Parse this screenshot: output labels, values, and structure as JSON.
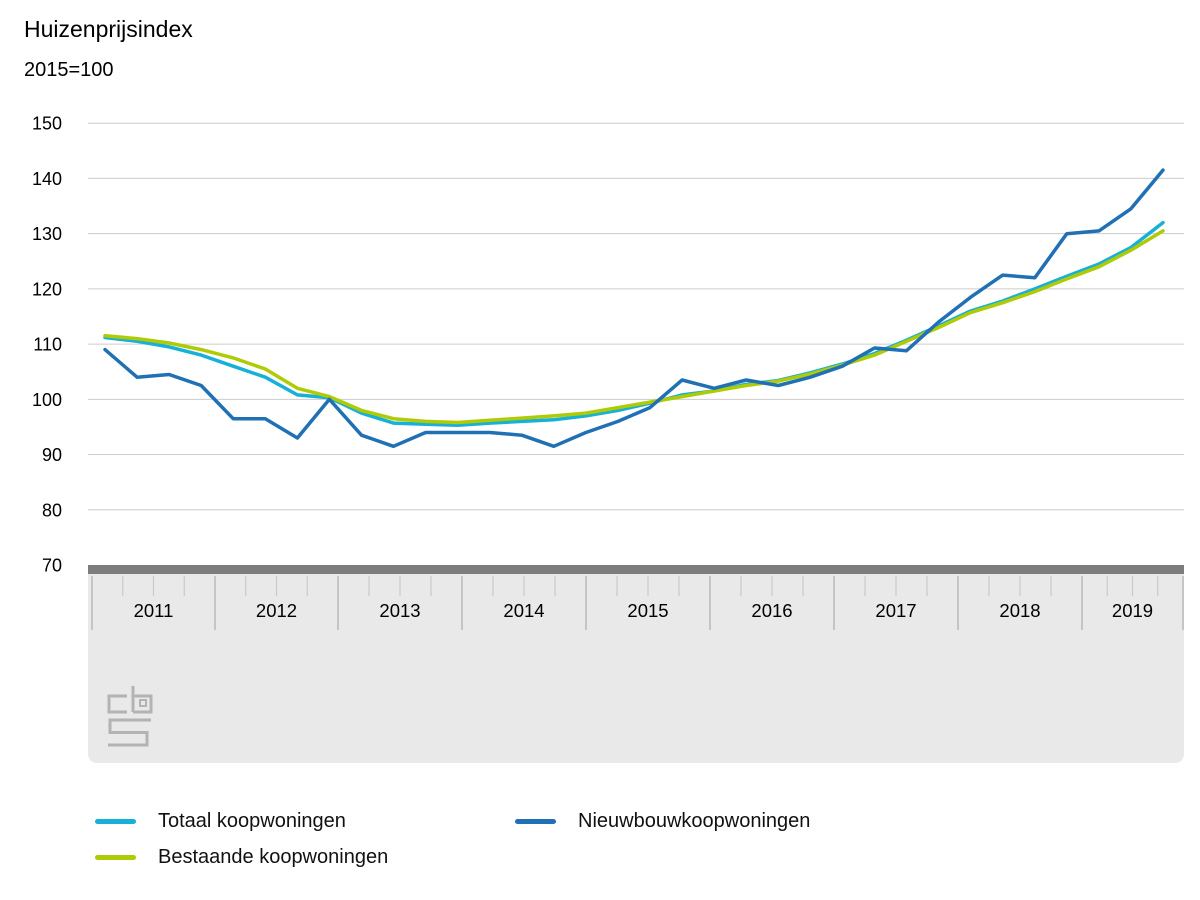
{
  "title": "Huizenprijsindex",
  "subtitle": "2015=100",
  "colors": {
    "totaal": "#17b0d9",
    "bestaande": "#afcb05",
    "nieuwbouw": "#2070b5",
    "gridline": "#cccccc",
    "axis_bar": "#7d7d7d",
    "band": "#e9e9e9",
    "tick_long": "#adadad",
    "tick_short": "#c9c9c9",
    "text": "#000000",
    "logo": "#b3b3b3"
  },
  "y_axis": {
    "ticks": [
      150,
      140,
      130,
      120,
      110,
      100,
      90,
      80,
      70
    ]
  },
  "x_axis": {
    "years": [
      "2011",
      "2012",
      "2013",
      "2014",
      "2015",
      "2016",
      "2017",
      "2018",
      "2019"
    ],
    "year_boundaries": [
      92,
      215,
      338,
      462,
      586,
      710,
      834,
      958,
      1082,
      1183
    ]
  },
  "logo": "cbs-logo",
  "legend": {
    "items": [
      {
        "key": "totaal",
        "label": "Totaal koopwoningen"
      },
      {
        "key": "nieuwbouw",
        "label": "Nieuwbouwkoopwoningen"
      },
      {
        "key": "bestaande",
        "label": "Bestaande koopwoningen"
      }
    ]
  },
  "chart_data": {
    "type": "line",
    "title": "Huizenprijsindex",
    "subtitle": "2015=100",
    "ylim": [
      70,
      150
    ],
    "yticks": [
      150,
      140,
      130,
      120,
      110,
      100,
      90,
      80,
      70
    ],
    "grid": "horizontal",
    "legend_position": "bottom",
    "x": [
      "2011 Q1",
      "2011 Q2",
      "2011 Q3",
      "2011 Q4",
      "2012 Q1",
      "2012 Q2",
      "2012 Q3",
      "2012 Q4",
      "2013 Q1",
      "2013 Q2",
      "2013 Q3",
      "2013 Q4",
      "2014 Q1",
      "2014 Q2",
      "2014 Q3",
      "2014 Q4",
      "2015 Q1",
      "2015 Q2",
      "2015 Q3",
      "2015 Q4",
      "2016 Q1",
      "2016 Q2",
      "2016 Q3",
      "2016 Q4",
      "2017 Q1",
      "2017 Q2",
      "2017 Q3",
      "2017 Q4",
      "2018 Q1",
      "2018 Q2",
      "2018 Q3",
      "2018 Q4",
      "2019 Q1",
      "2019 Q2"
    ],
    "series": [
      {
        "key": "totaal",
        "name": "Totaal koopwoningen",
        "values": [
          111.2,
          110.5,
          109.5,
          108,
          106,
          104,
          100.8,
          100.3,
          97.5,
          95.7,
          95.5,
          95.3,
          95.7,
          96,
          96.3,
          97,
          98,
          99.3,
          100.8,
          101.5,
          102.7,
          103.4,
          104.8,
          106.4,
          108.3,
          110.7,
          113.3,
          116,
          117.8,
          120,
          122.3,
          124.5,
          127.5,
          132
        ]
      },
      {
        "key": "bestaande",
        "name": "Bestaande koopwoningen",
        "values": [
          111.5,
          111,
          110.2,
          109,
          107.5,
          105.5,
          102,
          100.5,
          98,
          96.5,
          96,
          95.8,
          96.2,
          96.6,
          97,
          97.5,
          98.5,
          99.5,
          100.5,
          101.5,
          102.5,
          103.3,
          104.6,
          106.2,
          108,
          110.5,
          113,
          115.7,
          117.5,
          119.5,
          121.8,
          124,
          127,
          130.5
        ]
      },
      {
        "key": "nieuwbouw",
        "name": "Nieuwbouwkoopwoningen",
        "values": [
          109,
          104,
          104.5,
          102.5,
          96.5,
          96.5,
          93,
          100,
          93.5,
          91.5,
          94,
          94,
          94,
          93.5,
          91.5,
          94,
          96,
          98.5,
          103.5,
          102,
          103.5,
          102.5,
          104,
          106,
          109.3,
          108.8,
          114,
          118.5,
          122.5,
          122,
          130,
          130.5,
          134.5,
          141.5
        ]
      }
    ]
  }
}
